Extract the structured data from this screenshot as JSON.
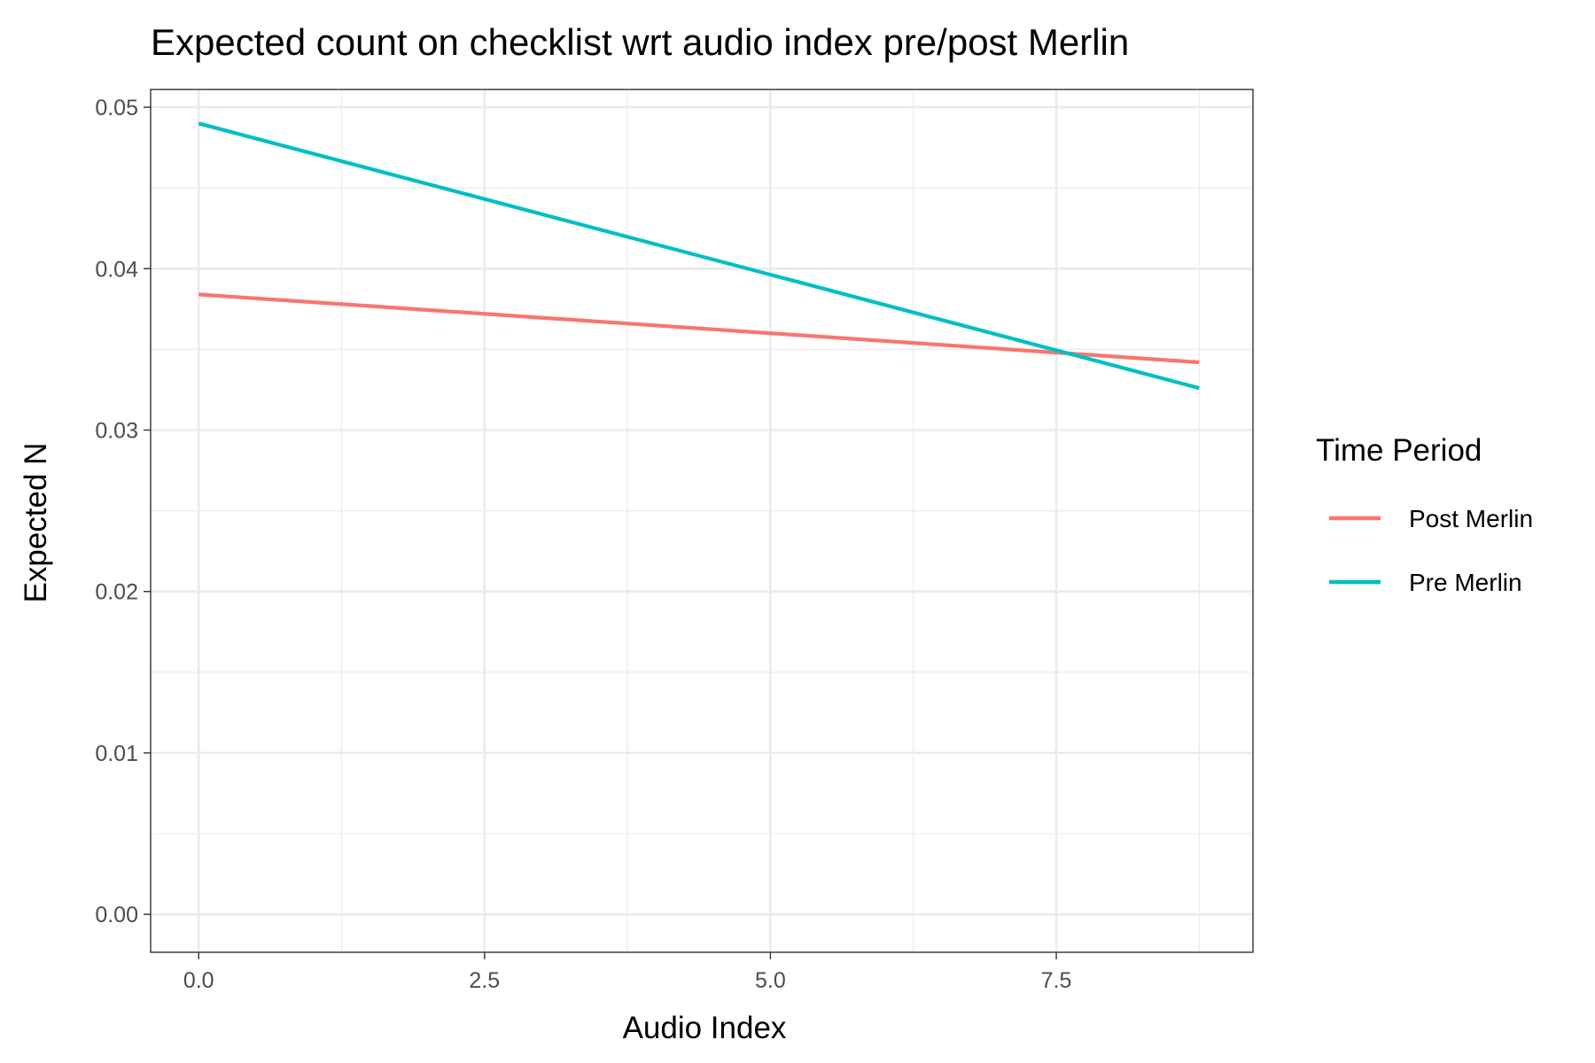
{
  "chart_data": {
    "type": "line",
    "title": "Expected count on checklist wrt audio index pre/post Merlin",
    "xlabel": "Audio Index",
    "ylabel": "Expected N",
    "xlim": [
      -0.42,
      9.22
    ],
    "ylim": [
      -0.00235,
      0.0511
    ],
    "x_ticks": [
      0.0,
      2.5,
      5.0,
      7.5
    ],
    "x_tick_labels": [
      "0.0",
      "2.5",
      "5.0",
      "7.5"
    ],
    "y_ticks": [
      0.0,
      0.01,
      0.02,
      0.03,
      0.04,
      0.05
    ],
    "y_tick_labels": [
      "0.00",
      "0.01",
      "0.02",
      "0.03",
      "0.04",
      "0.05"
    ],
    "grid": true,
    "legend_title": "Time Period",
    "legend_position": "right",
    "series": [
      {
        "name": "Post Merlin",
        "color": "#F8766D",
        "x": [
          0.0,
          8.75
        ],
        "y": [
          0.0384,
          0.0342
        ]
      },
      {
        "name": "Pre Merlin",
        "color": "#00BFC4",
        "x": [
          0.0,
          8.75
        ],
        "y": [
          0.049,
          0.0326
        ]
      }
    ]
  }
}
